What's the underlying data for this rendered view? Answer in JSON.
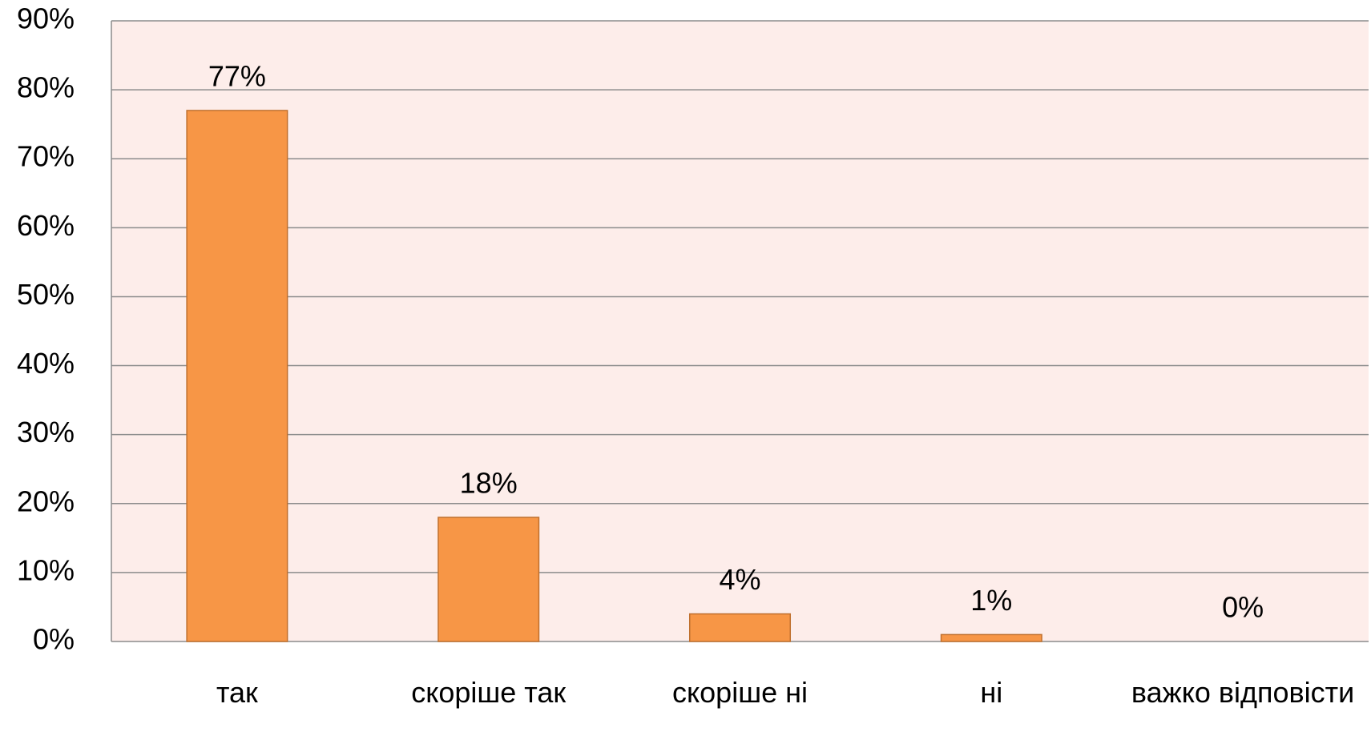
{
  "chart_data": {
    "type": "bar",
    "categories": [
      "так",
      "скоріше так",
      "скоріше ні",
      "ні",
      "важко відповісти"
    ],
    "values": [
      77,
      18,
      4,
      1,
      0
    ],
    "value_labels": [
      "77%",
      "18%",
      "4%",
      "1%",
      "0%"
    ],
    "color": "#f79646",
    "ylim": [
      0,
      90
    ],
    "yticks": [
      {
        "value": 0,
        "label": "0%"
      },
      {
        "value": 10,
        "label": "10%"
      },
      {
        "value": 20,
        "label": "20%"
      },
      {
        "value": 30,
        "label": "30%"
      },
      {
        "value": 40,
        "label": "40%"
      },
      {
        "value": 50,
        "label": "50%"
      },
      {
        "value": 60,
        "label": "60%"
      },
      {
        "value": 70,
        "label": "70%"
      },
      {
        "value": 80,
        "label": "80%"
      },
      {
        "value": 90,
        "label": "90%"
      }
    ],
    "grid": true
  }
}
